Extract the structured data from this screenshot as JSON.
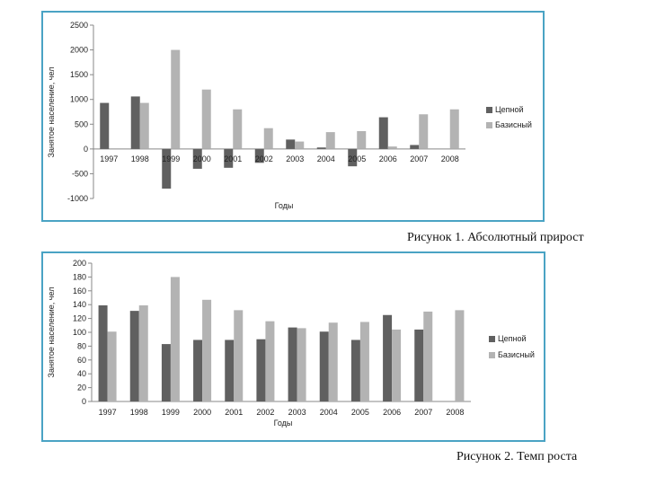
{
  "chart_data": [
    {
      "type": "bar",
      "title": "",
      "xlabel": "Годы",
      "ylabel": "Занятое население, чел",
      "ylim": [
        -1000,
        2500
      ],
      "yticks": [
        -1000,
        -500,
        0,
        500,
        1000,
        1500,
        2000,
        2500
      ],
      "categories": [
        "1997",
        "1998",
        "1999",
        "2000",
        "2001",
        "2002",
        "2003",
        "2004",
        "2005",
        "2006",
        "2007",
        "2008"
      ],
      "series": [
        {
          "name": "Цепной",
          "color": "#606060",
          "values": [
            930,
            1060,
            -800,
            -400,
            -380,
            -280,
            190,
            30,
            -350,
            640,
            80,
            null
          ]
        },
        {
          "name": "Базисный",
          "color": "#b3b3b3",
          "values": [
            null,
            930,
            2000,
            1200,
            800,
            420,
            150,
            340,
            360,
            50,
            700,
            800
          ]
        }
      ],
      "legend": "right",
      "grid": false,
      "caption": "Рисунок 1. Абсолютный прирост"
    },
    {
      "type": "bar",
      "title": "",
      "xlabel": "Годы",
      "ylabel": "Занятое население, чел",
      "ylim": [
        0,
        200
      ],
      "yticks": [
        0,
        20,
        40,
        60,
        80,
        100,
        120,
        140,
        160,
        180,
        200
      ],
      "categories": [
        "1997",
        "1998",
        "1999",
        "2000",
        "2001",
        "2002",
        "2003",
        "2004",
        "2005",
        "2006",
        "2007",
        "2008"
      ],
      "series": [
        {
          "name": "Цепной",
          "color": "#606060",
          "values": [
            139,
            131,
            83,
            89,
            89,
            90,
            107,
            101,
            89,
            125,
            104,
            null
          ]
        },
        {
          "name": "Базисный",
          "color": "#b3b3b3",
          "values": [
            101,
            139,
            180,
            147,
            132,
            116,
            106,
            114,
            115,
            104,
            130,
            132
          ]
        }
      ],
      "legend": "right",
      "grid": false,
      "caption": "Рисунок 2. Темп роста"
    }
  ]
}
